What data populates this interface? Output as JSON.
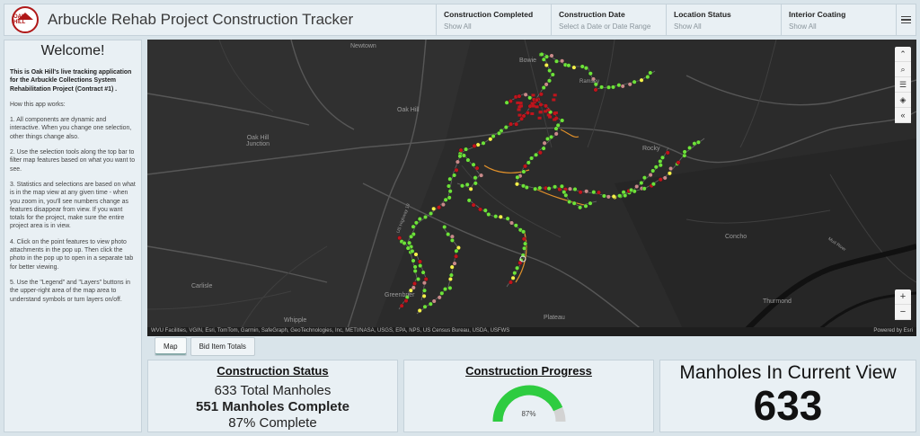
{
  "header": {
    "title": "Arbuckle Rehab Project Construction Tracker",
    "logo_text": "OAK HILL",
    "filters": [
      {
        "label": "Construction Completed",
        "value": "Show All"
      },
      {
        "label": "Construction Date",
        "value": "Select a Date or Date Range"
      },
      {
        "label": "Location Status",
        "value": "Show All"
      },
      {
        "label": "Interior Coating",
        "value": "Show All"
      }
    ]
  },
  "sidebar": {
    "heading": "Welcome!",
    "intro": "This is Oak Hill's live tracking application for the Arbuckle Collections System Rehabilitation Project (Contract #1) .",
    "paragraphs": [
      "How this app works:",
      "1. All components are dynamic and interactive.  When you change one selection, other things change also.",
      "2. Use the selection tools along the top bar to filter map features based on what you want to see.",
      "3.  Statistics and selections are based on what is in the map view at any given time - when you zoom in, you'll see numbers change as features disappear from view.  If you want totals for the project, make sure the entire project area is in view.",
      "4. Click on the point features to view photo attachments in the pop up.  Then click the photo in the pop up to open in a separate tab for better viewing.",
      "5. Use the \"Legend\" and \"Layers\" buttons in the upper-right area of the map area to understand symbols or turn layers on/off."
    ]
  },
  "map": {
    "places": [
      "Newtown",
      "Oak Hill",
      "Oak Hill Junction",
      "Bowie",
      "Rocky",
      "Concho",
      "Carlisle",
      "Greenbrier",
      "Whipple",
      "Plateau",
      "Thurmond",
      "Ramsey",
      "US Highway 19",
      "Mud River"
    ],
    "attribution": "WVU Facilities, VGIN, Esri, TomTom, Garmin, SafeGraph, GeoTechnologies, Inc, METI/NASA, USGS, EPA, NPS, US Census Bureau, USDA, USFWS",
    "powered_by": "Powered by Esri",
    "colors": {
      "complete": "#6de23a",
      "in_progress": "#f4f04a",
      "problem": "#c0141c",
      "pending": "#c98a8a",
      "line": "#e0902a"
    }
  },
  "tabs": [
    "Map",
    "Bid Item Totals"
  ],
  "status": {
    "title": "Construction Status",
    "total": "633 Total Manholes",
    "complete": "551 Manholes Complete",
    "percent": "87% Complete"
  },
  "progress": {
    "title": "Construction Progress",
    "value": 87,
    "label": "87%"
  },
  "current_view": {
    "title": "Manholes In Current View",
    "count": "633"
  }
}
